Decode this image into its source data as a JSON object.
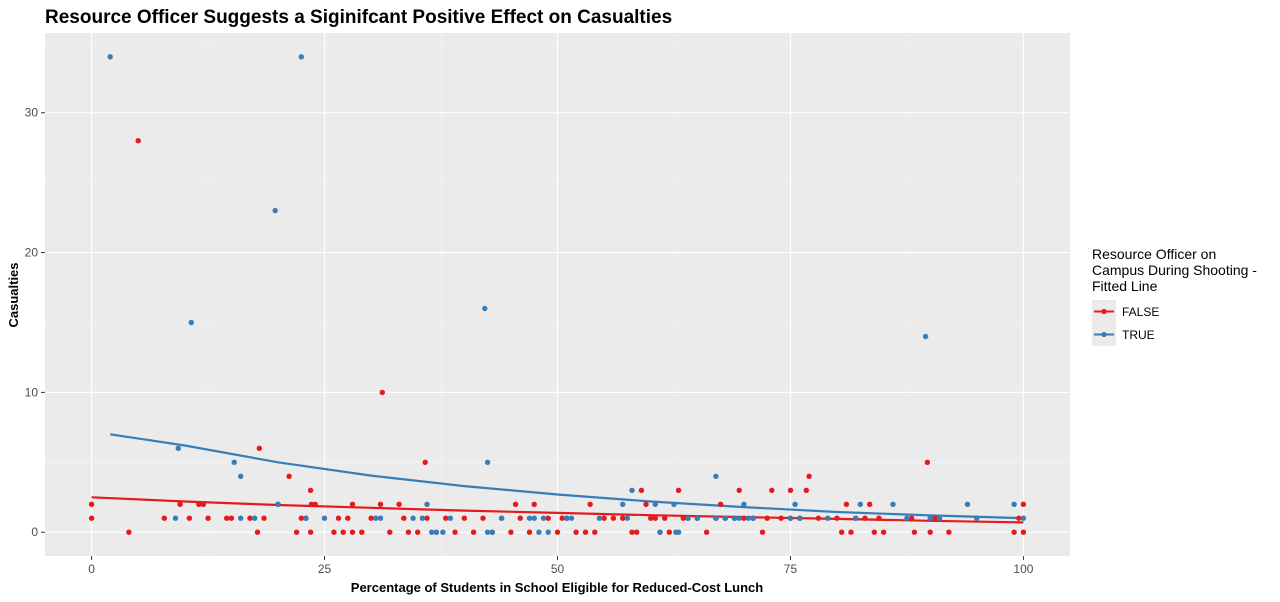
{
  "chart_data": {
    "type": "scatter",
    "title": "Resource Officer Suggests a Siginifcant Positive Effect on Casualties",
    "xlabel": "Percentage of Students in School Eligible for Reduced-Cost Lunch",
    "ylabel": "Casualties",
    "xlim": [
      -5,
      105
    ],
    "ylim": [
      -1.7,
      35.7
    ],
    "x_ticks": [
      0,
      25,
      50,
      75,
      100
    ],
    "x_tick_labels": [
      "0",
      "25",
      "50",
      "75",
      "100"
    ],
    "y_ticks": [
      0,
      10,
      20,
      30
    ],
    "y_tick_labels": [
      "0",
      "10",
      "20",
      "30"
    ],
    "grid": true,
    "legend": {
      "title_lines": [
        "Resource Officer on",
        "Campus During Shooting -",
        "Fitted Line"
      ],
      "position": "right"
    },
    "series": [
      {
        "name": "FALSE",
        "color": "#e41a1c",
        "points": [
          [
            0,
            2
          ],
          [
            0,
            1
          ],
          [
            4,
            0
          ],
          [
            5,
            28
          ],
          [
            7.8,
            1
          ],
          [
            9.5,
            2
          ],
          [
            10.5,
            1
          ],
          [
            11.5,
            2
          ],
          [
            12,
            2
          ],
          [
            12.5,
            1
          ],
          [
            14.5,
            1
          ],
          [
            15,
            1
          ],
          [
            17,
            1
          ],
          [
            17.8,
            0
          ],
          [
            18,
            6
          ],
          [
            18.5,
            1
          ],
          [
            20,
            2
          ],
          [
            21.2,
            4
          ],
          [
            22,
            0
          ],
          [
            22.5,
            1
          ],
          [
            23,
            1
          ],
          [
            23.5,
            3
          ],
          [
            23.6,
            2
          ],
          [
            23.5,
            0
          ],
          [
            24,
            2
          ],
          [
            26,
            0
          ],
          [
            26.5,
            1
          ],
          [
            27,
            0
          ],
          [
            27.5,
            1
          ],
          [
            28,
            0
          ],
          [
            28,
            2
          ],
          [
            29,
            0
          ],
          [
            30,
            1
          ],
          [
            31.2,
            10
          ],
          [
            31,
            2
          ],
          [
            32,
            0
          ],
          [
            33,
            2
          ],
          [
            33.5,
            1
          ],
          [
            34,
            0
          ],
          [
            35,
            0
          ],
          [
            35.8,
            5
          ],
          [
            36,
            1
          ],
          [
            37,
            0
          ],
          [
            38,
            1
          ],
          [
            39,
            0
          ],
          [
            40,
            1
          ],
          [
            41,
            0
          ],
          [
            42,
            1
          ],
          [
            43,
            0
          ],
          [
            44,
            1
          ],
          [
            45,
            0
          ],
          [
            45.5,
            2
          ],
          [
            46,
            1
          ],
          [
            47,
            0
          ],
          [
            47.5,
            2
          ],
          [
            49,
            1
          ],
          [
            50,
            0
          ],
          [
            50.5,
            1
          ],
          [
            51,
            1
          ],
          [
            52,
            0
          ],
          [
            53,
            0
          ],
          [
            53.5,
            2
          ],
          [
            54,
            0
          ],
          [
            55,
            1
          ],
          [
            56,
            1
          ],
          [
            57,
            1
          ],
          [
            58,
            0
          ],
          [
            58.5,
            0
          ],
          [
            59,
            3
          ],
          [
            59.5,
            2
          ],
          [
            60,
            1
          ],
          [
            60.5,
            1
          ],
          [
            61,
            0
          ],
          [
            61.5,
            1
          ],
          [
            62,
            0
          ],
          [
            63,
            3
          ],
          [
            63.5,
            1
          ],
          [
            64,
            1
          ],
          [
            65,
            1
          ],
          [
            66,
            0
          ],
          [
            67,
            1
          ],
          [
            67.5,
            2
          ],
          [
            68,
            1
          ],
          [
            69,
            1
          ],
          [
            69.5,
            3
          ],
          [
            70,
            1
          ],
          [
            71,
            1
          ],
          [
            72,
            0
          ],
          [
            72.5,
            1
          ],
          [
            73,
            3
          ],
          [
            74,
            1
          ],
          [
            75,
            3
          ],
          [
            75,
            1
          ],
          [
            76,
            1
          ],
          [
            76.7,
            3
          ],
          [
            77,
            4
          ],
          [
            78,
            1
          ],
          [
            80,
            1
          ],
          [
            80.5,
            0
          ],
          [
            81,
            2
          ],
          [
            81.5,
            0
          ],
          [
            82,
            1
          ],
          [
            83,
            1
          ],
          [
            83.5,
            2
          ],
          [
            84,
            0
          ],
          [
            84.5,
            1
          ],
          [
            85,
            0
          ],
          [
            88,
            1
          ],
          [
            88.3,
            0
          ],
          [
            89.7,
            5
          ],
          [
            90,
            0
          ],
          [
            90.5,
            1
          ],
          [
            91,
            1
          ],
          [
            92,
            0
          ],
          [
            99,
            0
          ],
          [
            99.5,
            1
          ],
          [
            100,
            2
          ],
          [
            100,
            0
          ]
        ]
      },
      {
        "name": "TRUE",
        "color": "#377eb8",
        "points": [
          [
            2,
            34
          ],
          [
            9,
            1
          ],
          [
            9.3,
            6
          ],
          [
            10.7,
            15
          ],
          [
            15.3,
            5
          ],
          [
            16,
            1
          ],
          [
            16,
            4
          ],
          [
            17.5,
            1
          ],
          [
            19.7,
            23
          ],
          [
            20,
            2
          ],
          [
            22.5,
            34
          ],
          [
            23,
            1
          ],
          [
            25,
            1
          ],
          [
            30.5,
            1
          ],
          [
            31,
            1
          ],
          [
            34.5,
            1
          ],
          [
            35.5,
            1
          ],
          [
            36,
            2
          ],
          [
            36.5,
            0
          ],
          [
            37,
            0
          ],
          [
            37.7,
            0
          ],
          [
            38.5,
            1
          ],
          [
            42.2,
            16
          ],
          [
            42.5,
            5
          ],
          [
            42.5,
            0
          ],
          [
            43,
            0
          ],
          [
            44,
            1
          ],
          [
            47,
            1
          ],
          [
            47.5,
            1
          ],
          [
            48,
            0
          ],
          [
            48.5,
            1
          ],
          [
            49,
            0
          ],
          [
            51,
            1
          ],
          [
            51.5,
            1
          ],
          [
            54.5,
            1
          ],
          [
            57,
            2
          ],
          [
            57.5,
            1
          ],
          [
            58,
            3
          ],
          [
            60.5,
            2
          ],
          [
            61,
            0
          ],
          [
            62.5,
            2
          ],
          [
            62.7,
            0
          ],
          [
            63,
            0
          ],
          [
            64,
            1
          ],
          [
            65,
            1
          ],
          [
            67,
            1
          ],
          [
            67,
            4
          ],
          [
            68,
            1
          ],
          [
            69,
            1
          ],
          [
            69.5,
            1
          ],
          [
            70,
            2
          ],
          [
            70.5,
            1
          ],
          [
            71,
            1
          ],
          [
            75,
            1
          ],
          [
            75.5,
            2
          ],
          [
            76,
            1
          ],
          [
            79,
            1
          ],
          [
            82,
            1
          ],
          [
            82.5,
            2
          ],
          [
            86,
            2
          ],
          [
            87.5,
            1
          ],
          [
            89.5,
            14
          ],
          [
            90,
            1
          ],
          [
            91,
            1
          ],
          [
            94,
            2
          ],
          [
            95,
            1
          ],
          [
            99,
            2
          ],
          [
            100,
            1
          ]
        ]
      }
    ],
    "fitted_lines": [
      {
        "series": "FALSE",
        "color": "#e41a1c",
        "x": [
          0,
          10,
          20,
          30,
          40,
          50,
          60,
          70,
          80,
          90,
          100
        ],
        "y": [
          2.5,
          2.2,
          1.95,
          1.75,
          1.55,
          1.38,
          1.22,
          1.08,
          0.95,
          0.82,
          0.7
        ]
      },
      {
        "series": "TRUE",
        "color": "#377eb8",
        "x": [
          2,
          10,
          20,
          30,
          40,
          50,
          60,
          70,
          80,
          90,
          100
        ],
        "y": [
          7.0,
          6.2,
          5.0,
          4.05,
          3.3,
          2.7,
          2.2,
          1.8,
          1.45,
          1.2,
          1.0
        ]
      }
    ]
  }
}
